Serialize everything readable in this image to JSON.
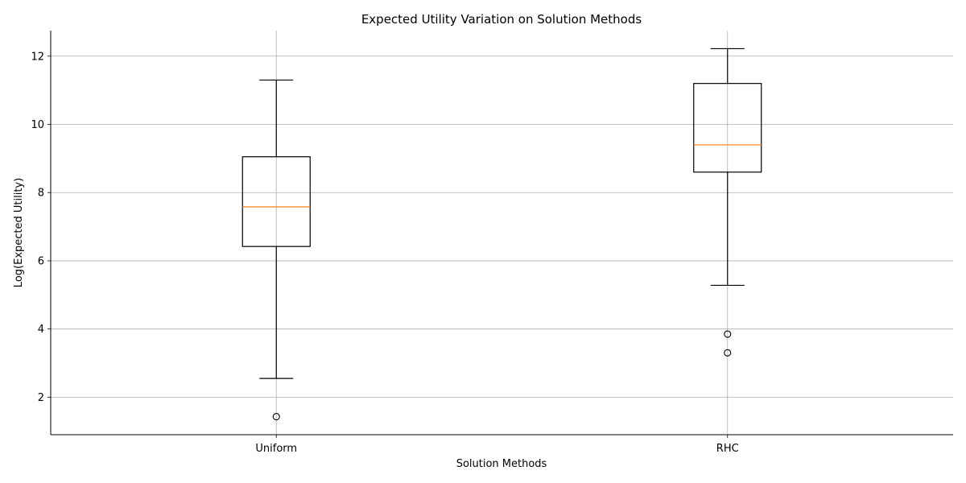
{
  "chart_data": {
    "type": "box",
    "title": "Expected Utility Variation on Solution Methods",
    "xlabel": "Solution Methods",
    "ylabel": "Log(Expected Utility)",
    "ylim": [
      0.9,
      12.75
    ],
    "yticks": [
      2,
      4,
      6,
      8,
      10,
      12
    ],
    "grid": true,
    "categories": [
      "Uniform",
      "RHC"
    ],
    "boxes": [
      {
        "category": "Uniform",
        "whisker_low": 2.55,
        "q1": 6.42,
        "median": 7.58,
        "q3": 9.05,
        "whisker_high": 11.3,
        "outliers": [
          1.43
        ]
      },
      {
        "category": "RHC",
        "whisker_low": 5.28,
        "q1": 8.6,
        "median": 9.4,
        "q3": 11.2,
        "whisker_high": 12.22,
        "outliers": [
          3.85,
          3.3
        ]
      }
    ],
    "colors": {
      "box": "#000000",
      "median": "#ff7f0e",
      "grid": "#b0b0b0"
    }
  }
}
